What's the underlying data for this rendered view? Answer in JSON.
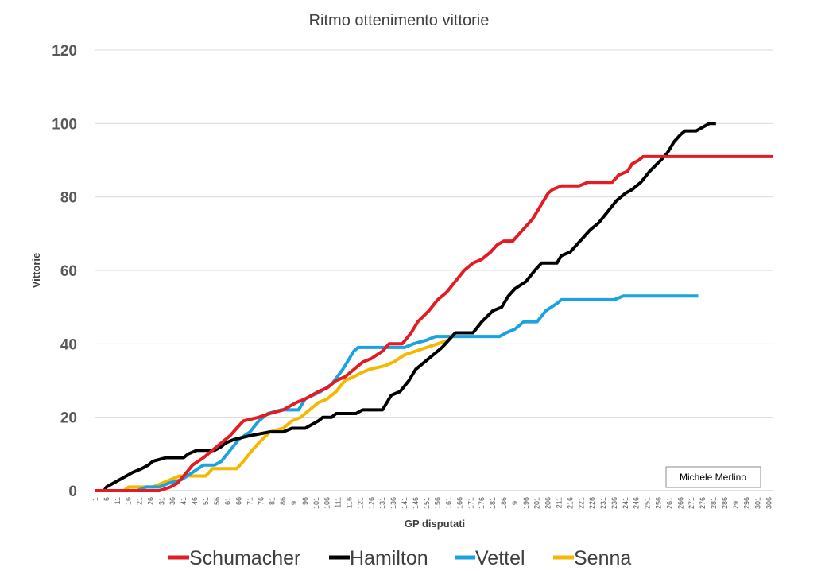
{
  "chart_data": {
    "type": "line",
    "title": "Ritmo ottenimento vittorie",
    "xlabel": "GP disputati",
    "ylabel": "Vittorie",
    "ylim": [
      0,
      120
    ],
    "yticks": [
      0,
      20,
      40,
      60,
      80,
      100,
      120
    ],
    "xlim": [
      1,
      308
    ],
    "xticks": [
      1,
      6,
      11,
      16,
      21,
      26,
      31,
      36,
      41,
      46,
      51,
      56,
      61,
      66,
      71,
      76,
      81,
      86,
      91,
      96,
      101,
      106,
      111,
      116,
      121,
      126,
      131,
      136,
      141,
      146,
      151,
      156,
      161,
      166,
      171,
      176,
      181,
      186,
      191,
      196,
      201,
      206,
      211,
      216,
      221,
      226,
      231,
      236,
      241,
      246,
      251,
      256,
      261,
      266,
      271,
      276,
      281,
      286,
      291,
      296,
      301,
      306
    ],
    "grid": true,
    "legend_position": "bottom",
    "series": [
      {
        "name": "Schumacher",
        "color": "#e31b23",
        "points": [
          [
            1,
            0
          ],
          [
            30,
            0
          ],
          [
            35,
            1
          ],
          [
            38,
            2
          ],
          [
            41,
            4
          ],
          [
            45,
            7
          ],
          [
            50,
            9
          ],
          [
            54,
            11
          ],
          [
            58,
            13
          ],
          [
            62,
            15
          ],
          [
            65,
            17
          ],
          [
            68,
            19
          ],
          [
            75,
            20
          ],
          [
            80,
            21
          ],
          [
            86,
            22
          ],
          [
            92,
            24
          ],
          [
            96,
            25
          ],
          [
            102,
            27
          ],
          [
            106,
            28
          ],
          [
            110,
            30
          ],
          [
            114,
            31
          ],
          [
            118,
            33
          ],
          [
            122,
            35
          ],
          [
            126,
            36
          ],
          [
            131,
            38
          ],
          [
            134,
            40
          ],
          [
            140,
            40
          ],
          [
            144,
            43
          ],
          [
            147,
            46
          ],
          [
            152,
            49
          ],
          [
            156,
            52
          ],
          [
            160,
            54
          ],
          [
            164,
            57
          ],
          [
            168,
            60
          ],
          [
            172,
            62
          ],
          [
            176,
            63
          ],
          [
            180,
            65
          ],
          [
            183,
            67
          ],
          [
            186,
            68
          ],
          [
            190,
            68
          ],
          [
            193,
            70
          ],
          [
            196,
            72
          ],
          [
            199,
            74
          ],
          [
            203,
            78
          ],
          [
            206,
            81
          ],
          [
            208,
            82
          ],
          [
            212,
            83
          ],
          [
            220,
            83
          ],
          [
            224,
            84
          ],
          [
            235,
            84
          ],
          [
            238,
            86
          ],
          [
            242,
            87
          ],
          [
            244,
            89
          ],
          [
            247,
            90
          ],
          [
            249,
            91
          ],
          [
            308,
            91
          ]
        ]
      },
      {
        "name": "Hamilton",
        "color": "#000000",
        "points": [
          [
            1,
            0
          ],
          [
            5,
            0
          ],
          [
            6,
            1
          ],
          [
            9,
            2
          ],
          [
            12,
            3
          ],
          [
            15,
            4
          ],
          [
            18,
            5
          ],
          [
            22,
            6
          ],
          [
            25,
            7
          ],
          [
            27,
            8
          ],
          [
            33,
            9
          ],
          [
            41,
            9
          ],
          [
            43,
            10
          ],
          [
            47,
            11
          ],
          [
            55,
            11
          ],
          [
            58,
            12
          ],
          [
            60,
            13
          ],
          [
            64,
            14
          ],
          [
            71,
            15
          ],
          [
            80,
            16
          ],
          [
            86,
            16
          ],
          [
            90,
            17
          ],
          [
            96,
            17
          ],
          [
            99,
            18
          ],
          [
            102,
            19
          ],
          [
            104,
            20
          ],
          [
            108,
            20
          ],
          [
            110,
            21
          ],
          [
            119,
            21
          ],
          [
            122,
            22
          ],
          [
            131,
            22
          ],
          [
            135,
            26
          ],
          [
            139,
            27
          ],
          [
            143,
            30
          ],
          [
            146,
            33
          ],
          [
            150,
            35
          ],
          [
            154,
            37
          ],
          [
            158,
            39
          ],
          [
            161,
            41
          ],
          [
            164,
            43
          ],
          [
            172,
            43
          ],
          [
            176,
            46
          ],
          [
            181,
            49
          ],
          [
            185,
            50
          ],
          [
            188,
            53
          ],
          [
            191,
            55
          ],
          [
            196,
            57
          ],
          [
            200,
            60
          ],
          [
            203,
            62
          ],
          [
            210,
            62
          ],
          [
            212,
            64
          ],
          [
            216,
            65
          ],
          [
            219,
            67
          ],
          [
            222,
            69
          ],
          [
            225,
            71
          ],
          [
            229,
            73
          ],
          [
            233,
            76
          ],
          [
            237,
            79
          ],
          [
            241,
            81
          ],
          [
            244,
            82
          ],
          [
            248,
            84
          ],
          [
            252,
            87
          ],
          [
            257,
            90
          ],
          [
            260,
            92
          ],
          [
            263,
            95
          ],
          [
            266,
            97
          ],
          [
            268,
            98
          ],
          [
            273,
            98
          ],
          [
            276,
            99
          ],
          [
            279,
            100
          ],
          [
            282,
            100
          ]
        ]
      },
      {
        "name": "Vettel",
        "color": "#1aa3e0",
        "points": [
          [
            1,
            0
          ],
          [
            20,
            0
          ],
          [
            24,
            1
          ],
          [
            30,
            1
          ],
          [
            34,
            2
          ],
          [
            40,
            3
          ],
          [
            45,
            5
          ],
          [
            50,
            7
          ],
          [
            55,
            7
          ],
          [
            58,
            8
          ],
          [
            62,
            11
          ],
          [
            66,
            14
          ],
          [
            71,
            16
          ],
          [
            75,
            19
          ],
          [
            79,
            21
          ],
          [
            85,
            22
          ],
          [
            93,
            22
          ],
          [
            96,
            25
          ],
          [
            103,
            27
          ],
          [
            108,
            29
          ],
          [
            113,
            33
          ],
          [
            118,
            38
          ],
          [
            120,
            39
          ],
          [
            141,
            39
          ],
          [
            145,
            40
          ],
          [
            151,
            41
          ],
          [
            155,
            42
          ],
          [
            184,
            42
          ],
          [
            187,
            43
          ],
          [
            191,
            44
          ],
          [
            195,
            46
          ],
          [
            201,
            46
          ],
          [
            205,
            49
          ],
          [
            210,
            51
          ],
          [
            212,
            52
          ],
          [
            236,
            52
          ],
          [
            240,
            53
          ],
          [
            274,
            53
          ]
        ]
      },
      {
        "name": "Senna",
        "color": "#f5b800",
        "points": [
          [
            1,
            0
          ],
          [
            14,
            0
          ],
          [
            16,
            1
          ],
          [
            27,
            1
          ],
          [
            31,
            2
          ],
          [
            35,
            3
          ],
          [
            39,
            4
          ],
          [
            51,
            4
          ],
          [
            54,
            6
          ],
          [
            65,
            6
          ],
          [
            68,
            8
          ],
          [
            72,
            11
          ],
          [
            75,
            13
          ],
          [
            80,
            16
          ],
          [
            86,
            17
          ],
          [
            90,
            19
          ],
          [
            94,
            20
          ],
          [
            98,
            22
          ],
          [
            102,
            24
          ],
          [
            106,
            25
          ],
          [
            110,
            27
          ],
          [
            114,
            30
          ],
          [
            118,
            31
          ],
          [
            121,
            32
          ],
          [
            125,
            33
          ],
          [
            132,
            34
          ],
          [
            136,
            35
          ],
          [
            141,
            37
          ],
          [
            146,
            38
          ],
          [
            151,
            39
          ],
          [
            156,
            40
          ],
          [
            161,
            41
          ]
        ]
      }
    ],
    "annotation": "Michele Merlino"
  }
}
